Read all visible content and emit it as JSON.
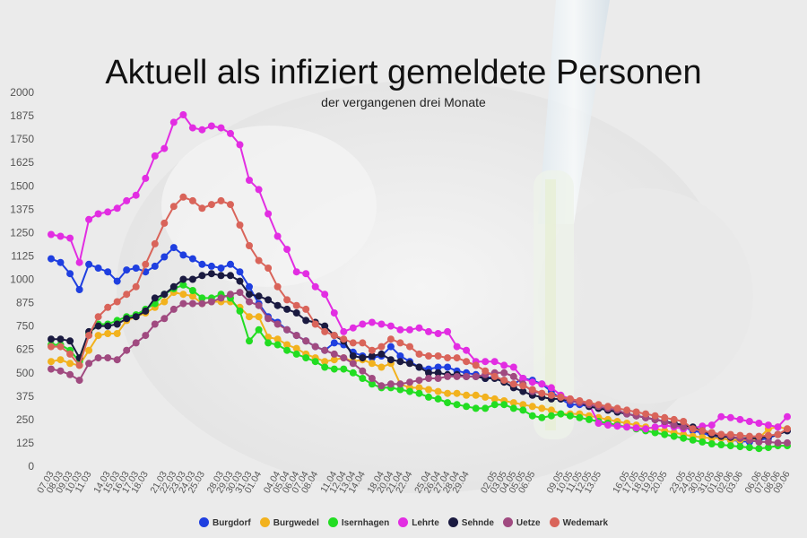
{
  "chart_data": {
    "type": "line",
    "title": "Aktuell als infiziert gemeldete Personen",
    "subtitle": "der vergangenen drei Monate",
    "xlabel": "",
    "ylabel": "",
    "ylim": [
      0,
      2000
    ],
    "yticks": [
      0,
      125,
      250,
      375,
      500,
      625,
      750,
      875,
      1000,
      1125,
      1250,
      1375,
      1500,
      1625,
      1750,
      1875,
      2000
    ],
    "x": [
      "07.03",
      "08.03",
      "09.03",
      "10.03",
      "11.03",
      "13.03",
      "14.03",
      "15.03",
      "16.03",
      "17.03",
      "18.03",
      "20.03",
      "21.03",
      "22.03",
      "23.03",
      "24.03",
      "25.03",
      "27.03",
      "28.03",
      "29.03",
      "30.03",
      "31.03",
      "01.04",
      "03.04",
      "04.04",
      "05.04",
      "06.04",
      "07.04",
      "08.04",
      "10.04",
      "11.04",
      "12.04",
      "13.04",
      "14.04",
      "17.04",
      "18.04",
      "20.04",
      "21.04",
      "22.04",
      "24.04",
      "25.04",
      "26.04",
      "27.04",
      "28.04",
      "29.04",
      "30.04",
      "01.05",
      "02.05",
      "03.05",
      "04.05",
      "05.05",
      "06.05",
      "07.05",
      "08.05",
      "09.05",
      "10.05",
      "11.05",
      "12.05",
      "13.05",
      "14.05",
      "15.05",
      "16.05",
      "17.05",
      "18.05",
      "19.05",
      "20.05",
      "22.05",
      "23.05",
      "24.05",
      "30.05",
      "31.05",
      "01.06",
      "02.06",
      "03.06",
      "05.06",
      "06.06",
      "07.06",
      "08.06",
      "09.06"
    ],
    "x_labels": [
      "07.03",
      "08.03",
      "09.03",
      "10.03",
      "11.03",
      "14.03",
      "15.03",
      "16.03",
      "17.03",
      "18.03",
      "21.03",
      "22.03",
      "23.03",
      "24.03",
      "25.03",
      "28.03",
      "29.03",
      "30.03",
      "31.03",
      "01.04",
      "04.04",
      "05.04",
      "06.04",
      "07.04",
      "08.04",
      "11.04",
      "12.04",
      "13.04",
      "14.04",
      "18.04",
      "20.04",
      "21.04",
      "22.04",
      "25.04",
      "26.04",
      "27.04",
      "28.04",
      "29.04",
      "02.05",
      "03.05",
      "04.05",
      "05.05",
      "06.05",
      "09.05",
      "10.05",
      "11.05",
      "12.05",
      "13.05",
      "16.05",
      "17.05",
      "18.05",
      "19.05",
      "20.05",
      "23.05",
      "24.05",
      "30.05",
      "31.05",
      "01.06",
      "02.06",
      "03.06",
      "06.06",
      "07.06",
      "08.06",
      "09.06"
    ],
    "series": [
      {
        "name": "Burgdorf",
        "color": "#1f3fe0",
        "values": [
          1110,
          1090,
          1030,
          945,
          1080,
          1060,
          1040,
          990,
          1050,
          1060,
          1040,
          1070,
          1120,
          1170,
          1130,
          1110,
          1080,
          1070,
          1060,
          1080,
          1040,
          960,
          870,
          800,
          770,
          730,
          700,
          670,
          640,
          620,
          660,
          650,
          610,
          590,
          580,
          590,
          640,
          590,
          560,
          530,
          520,
          530,
          530,
          510,
          500,
          490,
          470,
          480,
          460,
          440,
          470,
          460,
          440,
          400,
          360,
          330,
          330,
          320,
          310,
          300,
          290,
          280,
          270,
          260,
          250,
          240,
          220,
          210,
          190,
          180,
          160,
          150,
          140,
          135,
          130,
          140,
          150,
          170,
          190
        ]
      },
      {
        "name": "Burgwedel",
        "color": "#f2b21e",
        "values": [
          560,
          570,
          550,
          540,
          620,
          700,
          710,
          710,
          780,
          800,
          820,
          850,
          880,
          930,
          920,
          910,
          870,
          880,
          880,
          880,
          850,
          800,
          800,
          690,
          680,
          650,
          630,
          600,
          580,
          560,
          570,
          580,
          560,
          570,
          550,
          530,
          550,
          440,
          420,
          420,
          410,
          400,
          390,
          390,
          380,
          380,
          370,
          360,
          350,
          340,
          330,
          320,
          310,
          300,
          280,
          280,
          280,
          270,
          260,
          250,
          240,
          230,
          220,
          210,
          200,
          190,
          180,
          170,
          160,
          155,
          150,
          150,
          140,
          140,
          140,
          150,
          200,
          210,
          200
        ]
      },
      {
        "name": "Isernhagen",
        "color": "#22dd22",
        "values": [
          650,
          650,
          620,
          560,
          710,
          760,
          760,
          780,
          800,
          810,
          840,
          870,
          920,
          950,
          970,
          940,
          900,
          900,
          920,
          900,
          830,
          670,
          730,
          660,
          650,
          620,
          600,
          580,
          560,
          530,
          520,
          520,
          500,
          470,
          440,
          420,
          420,
          410,
          400,
          390,
          370,
          360,
          340,
          330,
          320,
          310,
          310,
          330,
          330,
          310,
          300,
          270,
          260,
          270,
          280,
          270,
          260,
          250,
          240,
          230,
          220,
          210,
          200,
          190,
          180,
          170,
          160,
          150,
          140,
          130,
          120,
          115,
          110,
          105,
          100,
          95,
          100,
          110,
          110
        ]
      },
      {
        "name": "Lehrte",
        "color": "#e22de2",
        "values": [
          1240,
          1230,
          1220,
          1090,
          1320,
          1350,
          1360,
          1380,
          1420,
          1450,
          1540,
          1660,
          1700,
          1840,
          1880,
          1810,
          1800,
          1820,
          1810,
          1780,
          1720,
          1530,
          1480,
          1350,
          1230,
          1160,
          1040,
          1030,
          960,
          920,
          820,
          720,
          740,
          760,
          770,
          760,
          750,
          730,
          730,
          740,
          720,
          710,
          720,
          640,
          620,
          560,
          560,
          560,
          540,
          530,
          470,
          450,
          440,
          420,
          380,
          360,
          340,
          330,
          230,
          220,
          215,
          210,
          205,
          200,
          210,
          220,
          210,
          200,
          205,
          215,
          220,
          265,
          260,
          250,
          240,
          230,
          220,
          210,
          265
        ]
      },
      {
        "name": "Sehnde",
        "color": "#1a1a40",
        "values": [
          680,
          680,
          670,
          580,
          720,
          750,
          750,
          760,
          790,
          800,
          830,
          900,
          920,
          960,
          1000,
          1000,
          1020,
          1030,
          1020,
          1020,
          990,
          920,
          910,
          890,
          860,
          840,
          820,
          780,
          770,
          750,
          700,
          670,
          590,
          580,
          590,
          600,
          570,
          560,
          550,
          530,
          500,
          500,
          490,
          490,
          480,
          480,
          470,
          470,
          450,
          420,
          400,
          380,
          370,
          360,
          360,
          350,
          340,
          320,
          310,
          300,
          290,
          280,
          270,
          260,
          250,
          240,
          230,
          220,
          210,
          190,
          170,
          160,
          155,
          150,
          150,
          150,
          160,
          170,
          190
        ]
      },
      {
        "name": "Uetze",
        "color": "#a04a80",
        "values": [
          520,
          510,
          490,
          460,
          550,
          580,
          580,
          570,
          620,
          660,
          700,
          760,
          790,
          840,
          870,
          870,
          870,
          880,
          900,
          920,
          930,
          880,
          860,
          790,
          760,
          730,
          700,
          670,
          640,
          620,
          600,
          580,
          550,
          510,
          470,
          430,
          440,
          440,
          450,
          460,
          470,
          470,
          480,
          480,
          480,
          480,
          490,
          500,
          500,
          480,
          440,
          400,
          390,
          380,
          370,
          350,
          340,
          330,
          320,
          310,
          300,
          280,
          270,
          260,
          250,
          240,
          220,
          210,
          200,
          190,
          180,
          170,
          160,
          150,
          140,
          130,
          130,
          125,
          125
        ]
      },
      {
        "name": "Wedemark",
        "color": "#d9645a",
        "values": [
          640,
          640,
          600,
          540,
          700,
          800,
          850,
          880,
          920,
          960,
          1080,
          1190,
          1300,
          1390,
          1440,
          1420,
          1380,
          1400,
          1420,
          1400,
          1290,
          1180,
          1100,
          1060,
          960,
          890,
          860,
          840,
          760,
          720,
          700,
          680,
          660,
          660,
          620,
          640,
          680,
          660,
          640,
          600,
          590,
          590,
          580,
          580,
          560,
          540,
          510,
          480,
          460,
          440,
          430,
          410,
          390,
          380,
          370,
          360,
          350,
          340,
          330,
          320,
          310,
          300,
          290,
          280,
          270,
          260,
          250,
          240,
          200,
          190,
          180,
          170,
          170,
          165,
          160,
          160,
          165,
          170,
          200
        ]
      }
    ],
    "legend_position": "bottom",
    "grid": false
  }
}
